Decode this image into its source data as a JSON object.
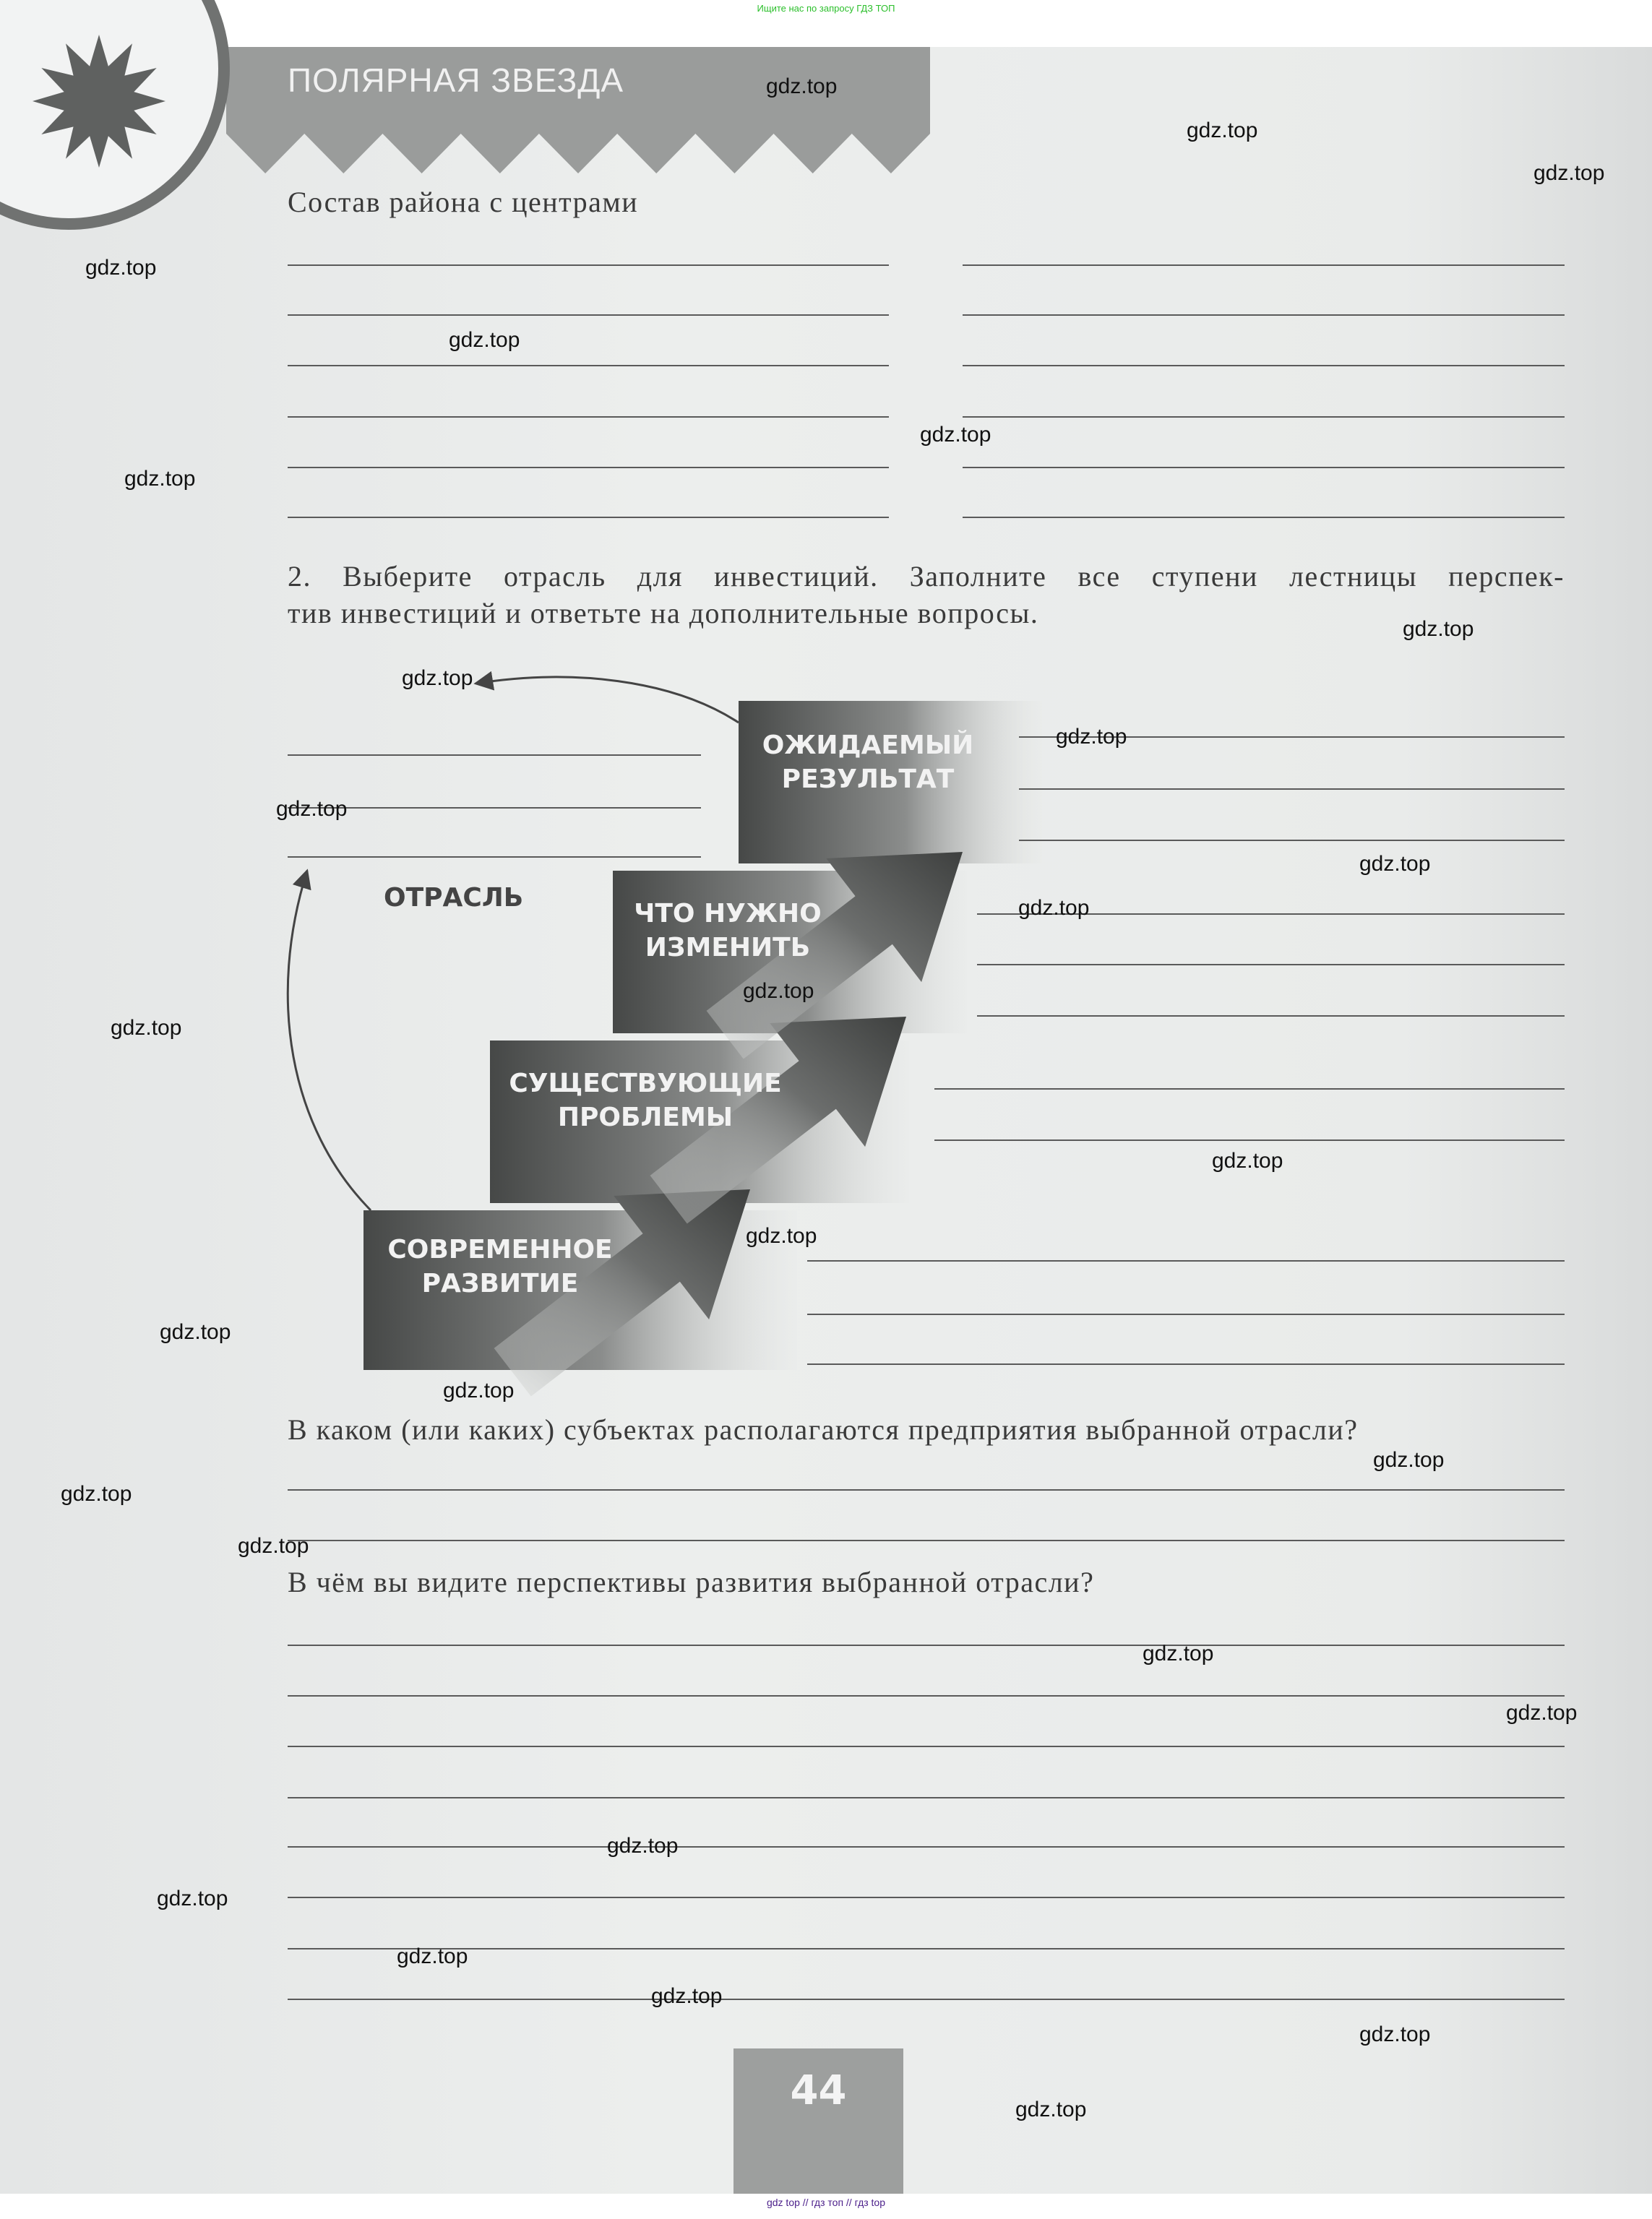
{
  "top_note": "Ищите нас по запросу ГДЗ ТОП",
  "header": {
    "title": "ПОЛЯРНАЯ ЗВЕЗДА",
    "colors": {
      "band": "#9a9c9b",
      "star": "#5f6160"
    }
  },
  "section_composition": {
    "label": "Состав района с центрами"
  },
  "task2": {
    "line1": "2. Выберите отрасль для инвестиций. Заполните все ступени лестницы перспек-",
    "line2": "тив инвестиций и ответьте на дополнительные вопросы."
  },
  "diagram": {
    "center_label": "ОТРАСЛЬ",
    "steps": [
      {
        "line1": "СОВРЕМЕННОЕ",
        "line2": "РАЗВИТИЕ"
      },
      {
        "line1": "СУЩЕСТВУЮЩИЕ",
        "line2": "ПРОБЛЕМЫ"
      },
      {
        "line1": "ЧТО НУЖНО",
        "line2": "ИЗМЕНИТЬ"
      },
      {
        "line1": "ОЖИДАЕМЫЙ",
        "line2": "РЕЗУЛЬТАТ"
      }
    ]
  },
  "question_subjects": "В каком (или каких) субъектах располагаются предприятия выбранной отрасли?",
  "question_prospects": "В чём вы видите перспективы развития выбранной отрасли?",
  "page_number": "44",
  "watermark": "gdz.top",
  "footer_note": "gdz top // гдз топ // гдз top"
}
